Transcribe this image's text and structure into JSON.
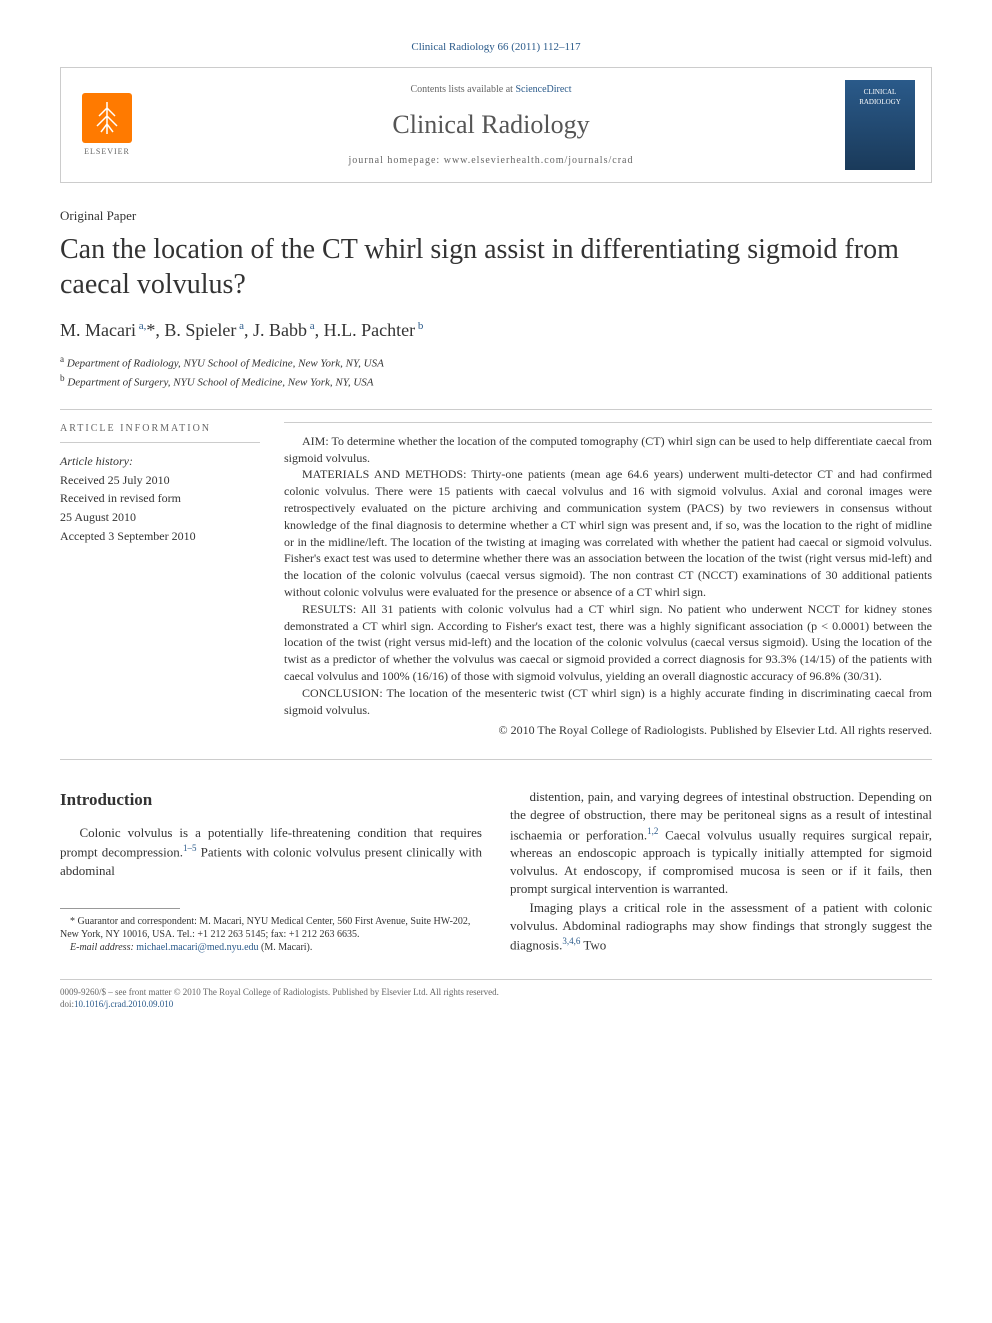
{
  "journal_ref": "Clinical Radiology 66 (2011) 112–117",
  "header": {
    "contents_prefix": "Contents lists available at ",
    "contents_link": "ScienceDirect",
    "journal_name": "Clinical Radiology",
    "homepage_prefix": "journal homepage: ",
    "homepage_url": "www.elsevierhealth.com/journals/crad",
    "publisher": "ELSEVIER",
    "cover_text": "CLINICAL RADIOLOGY"
  },
  "article_type": "Original Paper",
  "title": "Can the location of the CT whirl sign assist in differentiating sigmoid from caecal volvulus?",
  "authors_html": "M. Macari <sup>a,</sup>*, B. Spieler <sup>a</sup>, J. Babb <sup>a</sup>, H.L. Pachter <sup>b</sup>",
  "authors": [
    {
      "name": "M. Macari",
      "aff": "a,",
      "star": "*"
    },
    {
      "name": "B. Spieler",
      "aff": "a"
    },
    {
      "name": "J. Babb",
      "aff": "a"
    },
    {
      "name": "H.L. Pachter",
      "aff": "b"
    }
  ],
  "affiliations": [
    {
      "sup": "a",
      "text": "Department of Radiology, NYU School of Medicine, New York, NY, USA"
    },
    {
      "sup": "b",
      "text": "Department of Surgery, NYU School of Medicine, New York, NY, USA"
    }
  ],
  "info_header": "ARTICLE INFORMATION",
  "history_label": "Article history:",
  "history": [
    "Received 25 July 2010",
    "Received in revised form",
    "25 August 2010",
    "Accepted 3 September 2010"
  ],
  "abstract": {
    "aim": "AIM: To determine whether the location of the computed tomography (CT) whirl sign can be used to help differentiate caecal from sigmoid volvulus.",
    "methods": "MATERIALS AND METHODS: Thirty-one patients (mean age 64.6 years) underwent multi-detector CT and had confirmed colonic volvulus. There were 15 patients with caecal volvulus and 16 with sigmoid volvulus. Axial and coronal images were retrospectively evaluated on the picture archiving and communication system (PACS) by two reviewers in consensus without knowledge of the final diagnosis to determine whether a CT whirl sign was present and, if so, was the location to the right of midline or in the midline/left. The location of the twisting at imaging was correlated with whether the patient had caecal or sigmoid volvulus. Fisher's exact test was used to determine whether there was an association between the location of the twist (right versus mid-left) and the location of the colonic volvulus (caecal versus sigmoid). The non contrast CT (NCCT) examinations of 30 additional patients without colonic volvulus were evaluated for the presence or absence of a CT whirl sign.",
    "results": "RESULTS: All 31 patients with colonic volvulus had a CT whirl sign. No patient who underwent NCCT for kidney stones demonstrated a CT whirl sign. According to Fisher's exact test, there was a highly significant association (p < 0.0001) between the location of the twist (right versus mid-left) and the location of the colonic volvulus (caecal versus sigmoid). Using the location of the twist as a predictor of whether the volvulus was caecal or sigmoid provided a correct diagnosis for 93.3% (14/15) of the patients with caecal volvulus and 100% (16/16) of those with sigmoid volvulus, yielding an overall diagnostic accuracy of 96.8% (30/31).",
    "conclusion": "CONCLUSION: The location of the mesenteric twist (CT whirl sign) is a highly accurate finding in discriminating caecal from sigmoid volvulus.",
    "copyright": "© 2010 The Royal College of Radiologists. Published by Elsevier Ltd. All rights reserved."
  },
  "intro_heading": "Introduction",
  "intro_col1": "Colonic volvulus is a potentially life-threatening condition that requires prompt decompression.<sup>1–5</sup> Patients with colonic volvulus present clinically with abdominal",
  "intro_col2_p1": "distention, pain, and varying degrees of intestinal obstruction. Depending on the degree of obstruction, there may be peritoneal signs as a result of intestinal ischaemia or perforation.<sup>1,2</sup> Caecal volvulus usually requires surgical repair, whereas an endoscopic approach is typically initially attempted for sigmoid volvulus. At endoscopy, if compromised mucosa is seen or if it fails, then prompt surgical intervention is warranted.",
  "intro_col2_p2": "Imaging plays a critical role in the assessment of a patient with colonic volvulus. Abdominal radiographs may show findings that strongly suggest the diagnosis.<sup>3,4,6</sup> Two",
  "footnote": {
    "guarantor": "* Guarantor and correspondent: M. Macari, NYU Medical Center, 560 First Avenue, Suite HW-202, New York, NY 10016, USA. Tel.: +1 212 263 5145; fax: +1 212 263 6635.",
    "email_label": "E-mail address: ",
    "email": "michael.macari@med.nyu.edu",
    "email_suffix": " (M. Macari)."
  },
  "footer": {
    "line1": "0009-9260/$ – see front matter © 2010 The Royal College of Radiologists. Published by Elsevier Ltd. All rights reserved.",
    "doi_prefix": "doi:",
    "doi": "10.1016/j.crad.2010.09.010"
  },
  "colors": {
    "link": "#2a5a8a",
    "text": "#333333",
    "border": "#cccccc",
    "elsevier_orange": "#ff7a00"
  }
}
